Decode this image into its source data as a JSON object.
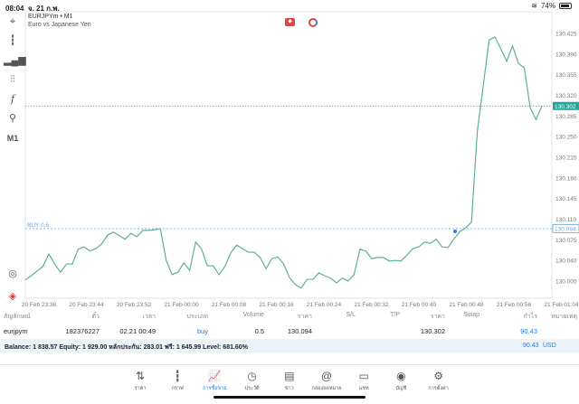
{
  "status_bar": {
    "time": "08:04",
    "date": "จ. 21 ก.พ.",
    "battery": "74%",
    "battery_level": 0.74
  },
  "chart": {
    "symbol": "EURJPYm • M1",
    "description": "Euro vs Japanese Yen",
    "timeframe_button": "M1",
    "colors": {
      "line": "#5fb08f",
      "bid": "#26a69a",
      "position": "#6aa6e6"
    },
    "current_price": "130.302",
    "position_label": "BUY 0.5",
    "position_price": "130.094",
    "icons": [
      "crosshair-icon",
      "candlestick-icon",
      "indicators-icon",
      "settings-sliders-icon",
      "function-icon",
      "objects-icon"
    ],
    "bottom_icons": [
      "one-click-trading-icon",
      "trade-toggle-icon"
    ]
  },
  "chart_data": {
    "type": "line",
    "ylim": [
      129.99,
      130.44
    ],
    "y_ticks": [
      "130.425",
      "130.390",
      "130.355",
      "130.320",
      "130.285",
      "130.250",
      "130.215",
      "130.180",
      "130.145",
      "130.110",
      "130.075",
      "130.040",
      "130.005"
    ],
    "x_ticks": [
      "20 Feb 23:36",
      "20 Feb 23:44",
      "20 Feb 23:52",
      "21 Feb 00:00",
      "21 Feb 00:08",
      "21 Feb 00:16",
      "21 Feb 00:24",
      "21 Feb 00:32",
      "21 Feb 00:40",
      "21 Feb 00:48",
      "21 Feb 00:56",
      "21 Feb 01:04"
    ],
    "values": [
      130.007,
      130.014,
      130.022,
      130.03,
      130.051,
      130.034,
      130.02,
      130.034,
      130.034,
      130.059,
      130.063,
      130.056,
      130.06,
      130.068,
      130.083,
      130.088,
      130.082,
      130.076,
      130.086,
      130.08,
      130.091,
      130.091,
      130.092,
      130.094,
      130.04,
      130.016,
      130.02,
      130.036,
      130.023,
      130.071,
      130.06,
      130.031,
      130.031,
      130.016,
      130.03,
      130.053,
      130.066,
      130.06,
      130.054,
      130.054,
      130.045,
      130.026,
      130.043,
      130.046,
      130.034,
      130.011,
      129.999,
      129.993,
      130.008,
      130.008,
      130.019,
      130.014,
      130.01,
      130.002,
      130.01,
      130.005,
      130.016,
      130.059,
      130.056,
      130.043,
      130.045,
      130.045,
      130.039,
      130.04,
      130.039,
      130.049,
      130.06,
      130.063,
      130.071,
      130.069,
      130.076,
      130.063,
      130.062,
      130.076,
      130.089,
      130.095,
      130.105,
      130.259,
      130.336,
      130.414,
      130.419,
      130.399,
      130.378,
      130.404,
      130.374,
      130.367,
      130.299,
      130.279,
      130.302
    ],
    "bid": 130.302,
    "position_open": 130.094,
    "grid": false
  },
  "table": {
    "headers": [
      "สัญลักษณ์",
      "ตั๋ว",
      "เวลา",
      "ประเภท",
      "Volume",
      "ราคา",
      "S/L",
      "T/P",
      "ราคา",
      "Swap",
      "กำไร",
      "หมายเหตุ"
    ],
    "rows": [
      [
        "eurjpym",
        "182376227",
        "02.21 00:49",
        "buy",
        "0.5",
        "130.094",
        "",
        "",
        "130.302",
        "",
        "90.43",
        ""
      ]
    ],
    "balance": "Balance: 1 838.57 Equity: 1 929.00 หลักประกัน: 283.01 ฟรี: 1 645.99 Level: 681.60%",
    "total_profit": "90.43",
    "currency": "USD"
  },
  "nav": [
    {
      "label": "ราคา",
      "icon": "quotes-icon",
      "glyph": "⇅"
    },
    {
      "label": "กราฟ",
      "icon": "chart-icon",
      "glyph": "┇"
    },
    {
      "label": "การซื้อขาย",
      "icon": "trade-icon",
      "glyph": "📈",
      "active": true
    },
    {
      "label": "ประวัติ",
      "icon": "history-icon",
      "glyph": "◷"
    },
    {
      "label": "ข่าว",
      "icon": "news-icon",
      "glyph": "▤"
    },
    {
      "label": "กล่องจดหมาย",
      "icon": "mailbox-icon",
      "glyph": "@"
    },
    {
      "label": "แชท",
      "icon": "chat-icon",
      "glyph": "▭"
    },
    {
      "label": "บัญชี",
      "icon": "account-icon",
      "glyph": "◉"
    },
    {
      "label": "การตั้งค่า",
      "icon": "settings-icon",
      "glyph": "⚙"
    }
  ]
}
